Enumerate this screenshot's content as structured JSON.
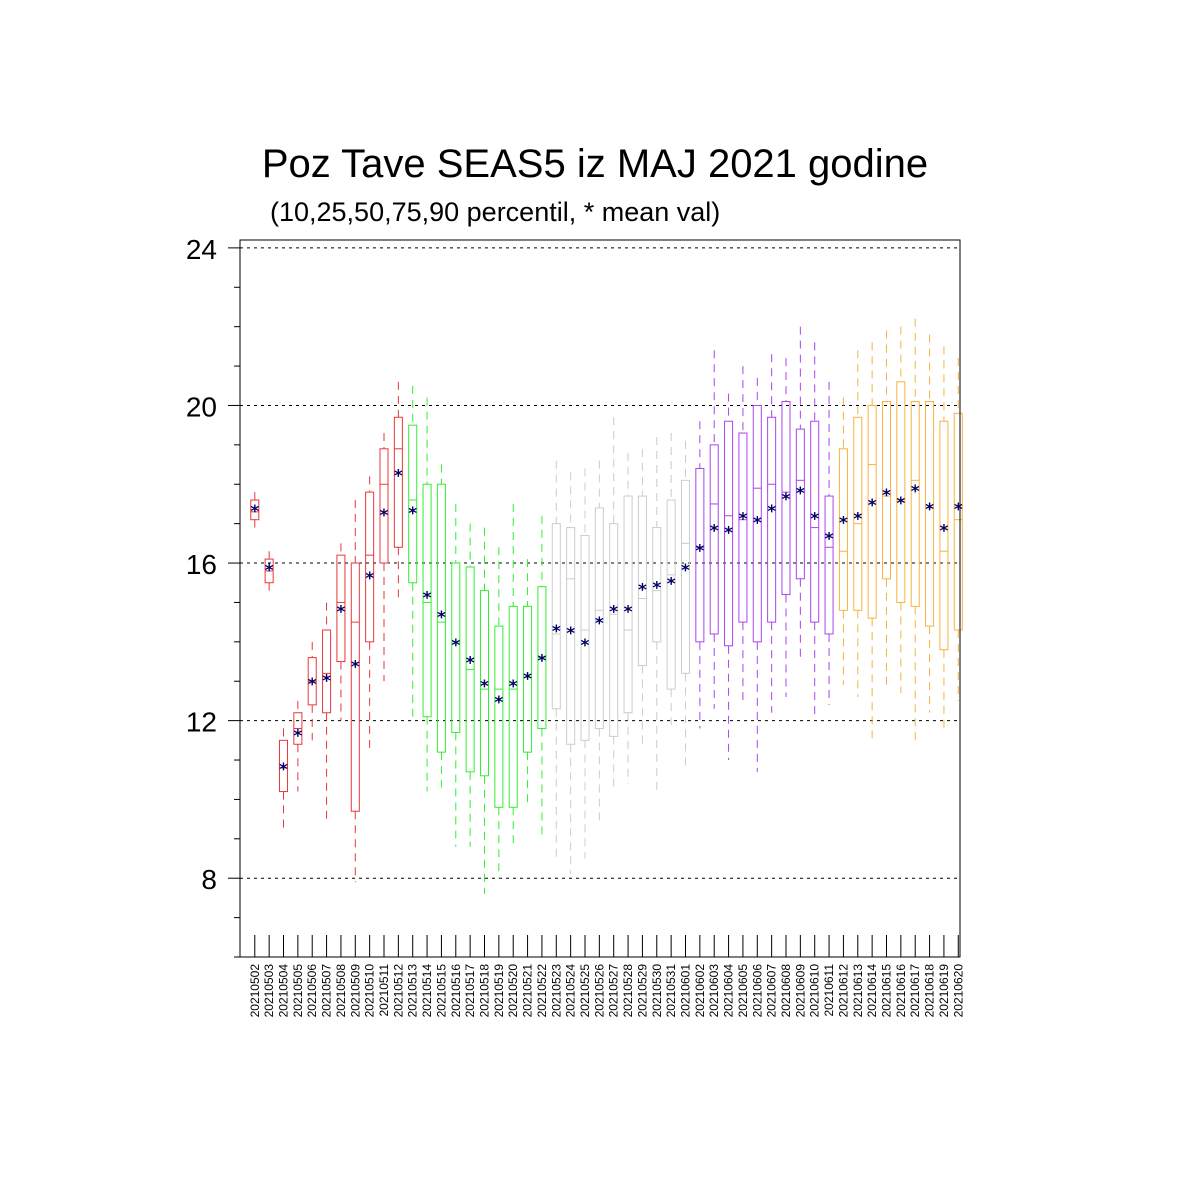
{
  "chart_data": {
    "type": "box",
    "title": "Poz Tave SEAS5 iz MAJ 2021 godine",
    "subtitle": "(10,25,50,75,90 percentil, * mean val)",
    "xlabel": "",
    "ylabel": "",
    "ylim": [
      6,
      24.2
    ],
    "yticks": [
      8,
      12,
      16,
      20,
      24
    ],
    "grid": "horizontal dashed at major ticks",
    "mean_color": "#000066",
    "color_groups": [
      {
        "from": 0,
        "to": 10,
        "color": "#e8383b"
      },
      {
        "from": 11,
        "to": 20,
        "color": "#33ee33"
      },
      {
        "from": 21,
        "to": 30,
        "color": "#cccccc"
      },
      {
        "from": 31,
        "to": 40,
        "color": "#aa44ee"
      },
      {
        "from": 41,
        "to": 50,
        "color": "#f5b341"
      }
    ],
    "boxes": [
      {
        "date": "20210502",
        "p10": 16.9,
        "p25": 17.1,
        "p50": 17.3,
        "p75": 17.6,
        "p90": 17.8,
        "mean": 17.35
      },
      {
        "date": "20210503",
        "p10": 15.2,
        "p25": 15.5,
        "p50": 15.8,
        "p75": 16.1,
        "p90": 16.3,
        "mean": 15.85
      },
      {
        "date": "20210504",
        "p10": 9.2,
        "p25": 10.2,
        "p50": 10.8,
        "p75": 11.5,
        "p90": 11.8,
        "mean": 10.8
      },
      {
        "date": "20210505",
        "p10": 10.2,
        "p25": 11.4,
        "p50": 11.8,
        "p75": 12.2,
        "p90": 12.5,
        "mean": 11.65
      },
      {
        "date": "20210506",
        "p10": 11.5,
        "p25": 12.4,
        "p50": 13.0,
        "p75": 13.6,
        "p90": 14.0,
        "mean": 12.95
      },
      {
        "date": "20210507",
        "p10": 9.5,
        "p25": 12.2,
        "p50": 13.2,
        "p75": 14.3,
        "p90": 15.0,
        "mean": 13.05
      },
      {
        "date": "20210508",
        "p10": 12.0,
        "p25": 13.5,
        "p50": 15.0,
        "p75": 16.2,
        "p90": 16.5,
        "mean": 14.8
      },
      {
        "date": "20210509",
        "p10": 7.9,
        "p25": 9.7,
        "p50": 14.5,
        "p75": 16.0,
        "p90": 17.6,
        "mean": 13.4
      },
      {
        "date": "20210510",
        "p10": 11.3,
        "p25": 14.0,
        "p50": 16.2,
        "p75": 17.8,
        "p90": 18.2,
        "mean": 15.65
      },
      {
        "date": "20210511",
        "p10": 13.0,
        "p25": 16.0,
        "p50": 18.0,
        "p75": 18.9,
        "p90": 19.3,
        "mean": 17.25
      },
      {
        "date": "20210512",
        "p10": 15.1,
        "p25": 16.4,
        "p50": 18.9,
        "p75": 19.7,
        "p90": 20.6,
        "mean": 18.25
      },
      {
        "date": "20210513",
        "p10": 12.0,
        "p25": 15.5,
        "p50": 17.6,
        "p75": 19.5,
        "p90": 20.5,
        "mean": 17.3
      },
      {
        "date": "20210514",
        "p10": 10.2,
        "p25": 12.1,
        "p50": 15.0,
        "p75": 18.0,
        "p90": 20.2,
        "mean": 15.15
      },
      {
        "date": "20210515",
        "p10": 10.3,
        "p25": 11.2,
        "p50": 14.5,
        "p75": 18.0,
        "p90": 18.5,
        "mean": 14.65
      },
      {
        "date": "20210516",
        "p10": 8.8,
        "p25": 11.7,
        "p50": 14.0,
        "p75": 16.0,
        "p90": 17.5,
        "mean": 13.95
      },
      {
        "date": "20210517",
        "p10": 8.8,
        "p25": 10.7,
        "p50": 13.3,
        "p75": 15.9,
        "p90": 17.0,
        "mean": 13.5
      },
      {
        "date": "20210518",
        "p10": 7.6,
        "p25": 10.6,
        "p50": 12.8,
        "p75": 15.3,
        "p90": 16.9,
        "mean": 12.9
      },
      {
        "date": "20210519",
        "p10": 8.0,
        "p25": 9.8,
        "p50": 12.8,
        "p75": 14.4,
        "p90": 16.4,
        "mean": 12.5
      },
      {
        "date": "20210520",
        "p10": 8.8,
        "p25": 9.8,
        "p50": 12.8,
        "p75": 14.9,
        "p90": 17.5,
        "mean": 12.9
      },
      {
        "date": "20210521",
        "p10": 9.8,
        "p25": 11.2,
        "p50": 13.1,
        "p75": 14.9,
        "p90": 16.1,
        "mean": 13.1
      },
      {
        "date": "20210522",
        "p10": 9.1,
        "p25": 11.8,
        "p50": 13.6,
        "p75": 15.4,
        "p90": 17.2,
        "mean": 13.55
      },
      {
        "date": "20210523",
        "p10": 8.5,
        "p25": 12.3,
        "p50": 14.2,
        "p75": 17.0,
        "p90": 18.6,
        "mean": 14.3
      },
      {
        "date": "20210524",
        "p10": 8.1,
        "p25": 11.4,
        "p50": 15.6,
        "p75": 16.9,
        "p90": 18.3,
        "mean": 14.25
      },
      {
        "date": "20210525",
        "p10": 8.5,
        "p25": 11.5,
        "p50": 14.3,
        "p75": 16.7,
        "p90": 18.4,
        "mean": 13.95
      },
      {
        "date": "20210526",
        "p10": 9.4,
        "p25": 11.8,
        "p50": 14.8,
        "p75": 17.4,
        "p90": 18.6,
        "mean": 14.5
      },
      {
        "date": "20210527",
        "p10": 10.2,
        "p25": 11.6,
        "p50": 14.7,
        "p75": 17.0,
        "p90": 19.7,
        "mean": 14.8
      },
      {
        "date": "20210528",
        "p10": 10.4,
        "p25": 12.2,
        "p50": 14.3,
        "p75": 17.7,
        "p90": 18.8,
        "mean": 14.8
      },
      {
        "date": "20210529",
        "p10": 11.3,
        "p25": 13.4,
        "p50": 15.1,
        "p75": 17.7,
        "p90": 18.9,
        "mean": 15.35
      },
      {
        "date": "20210530",
        "p10": 10.1,
        "p25": 14.0,
        "p50": 15.3,
        "p75": 16.9,
        "p90": 19.2,
        "mean": 15.4
      },
      {
        "date": "20210531",
        "p10": 11.8,
        "p25": 12.8,
        "p50": 15.7,
        "p75": 17.6,
        "p90": 19.3,
        "mean": 15.5
      },
      {
        "date": "20210601",
        "p10": 10.7,
        "p25": 13.2,
        "p50": 16.5,
        "p75": 18.1,
        "p90": 19.1,
        "mean": 15.85
      },
      {
        "date": "20210602",
        "p10": 11.8,
        "p25": 14.0,
        "p50": 16.4,
        "p75": 18.4,
        "p90": 19.6,
        "mean": 16.35
      },
      {
        "date": "20210603",
        "p10": 12.3,
        "p25": 14.2,
        "p50": 17.5,
        "p75": 19.0,
        "p90": 21.4,
        "mean": 16.85
      },
      {
        "date": "20210604",
        "p10": 11.0,
        "p25": 13.9,
        "p50": 17.2,
        "p75": 19.6,
        "p90": 20.3,
        "mean": 16.8
      },
      {
        "date": "20210605",
        "p10": 12.5,
        "p25": 14.5,
        "p50": 17.1,
        "p75": 19.3,
        "p90": 21.0,
        "mean": 17.15
      },
      {
        "date": "20210606",
        "p10": 10.7,
        "p25": 14.0,
        "p50": 17.9,
        "p75": 20.0,
        "p90": 20.7,
        "mean": 17.05
      },
      {
        "date": "20210607",
        "p10": 12.2,
        "p25": 14.5,
        "p50": 18.0,
        "p75": 19.7,
        "p90": 21.3,
        "mean": 17.35
      },
      {
        "date": "20210608",
        "p10": 12.6,
        "p25": 15.2,
        "p50": 17.8,
        "p75": 20.1,
        "p90": 21.2,
        "mean": 17.65
      },
      {
        "date": "20210609",
        "p10": 13.6,
        "p25": 15.6,
        "p50": 18.1,
        "p75": 19.4,
        "p90": 22.0,
        "mean": 17.8
      },
      {
        "date": "20210610",
        "p10": 12.1,
        "p25": 14.5,
        "p50": 16.9,
        "p75": 19.6,
        "p90": 21.6,
        "mean": 17.15
      },
      {
        "date": "20210611",
        "p10": 12.4,
        "p25": 14.2,
        "p50": 16.4,
        "p75": 17.7,
        "p90": 20.6,
        "mean": 16.65
      },
      {
        "date": "20210612",
        "p10": 12.9,
        "p25": 14.8,
        "p50": 16.3,
        "p75": 18.9,
        "p90": 20.2,
        "mean": 17.05
      },
      {
        "date": "20210613",
        "p10": 12.6,
        "p25": 14.8,
        "p50": 17.0,
        "p75": 19.7,
        "p90": 21.4,
        "mean": 17.15
      },
      {
        "date": "20210614",
        "p10": 11.4,
        "p25": 14.6,
        "p50": 18.5,
        "p75": 20.0,
        "p90": 21.6,
        "mean": 17.5
      },
      {
        "date": "20210615",
        "p10": 12.9,
        "p25": 15.6,
        "p50": 17.7,
        "p75": 20.1,
        "p90": 21.9,
        "mean": 17.75
      },
      {
        "date": "20210616",
        "p10": 12.7,
        "p25": 15.0,
        "p50": 17.6,
        "p75": 20.6,
        "p90": 22.0,
        "mean": 17.55
      },
      {
        "date": "20210617",
        "p10": 11.5,
        "p25": 14.9,
        "p50": 18.1,
        "p75": 20.1,
        "p90": 22.2,
        "mean": 17.85
      },
      {
        "date": "20210618",
        "p10": 12.2,
        "p25": 14.4,
        "p50": 17.4,
        "p75": 20.1,
        "p90": 21.8,
        "mean": 17.4
      },
      {
        "date": "20210619",
        "p10": 11.7,
        "p25": 13.8,
        "p50": 16.3,
        "p75": 19.6,
        "p90": 21.5,
        "mean": 16.85
      },
      {
        "date": "20210620",
        "p10": 12.5,
        "p25": 14.3,
        "p50": 17.1,
        "p75": 19.8,
        "p90": 21.2,
        "mean": 17.4
      }
    ]
  }
}
